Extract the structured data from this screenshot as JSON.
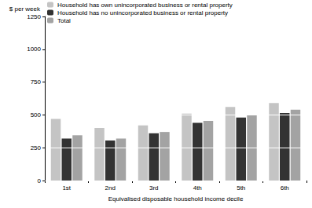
{
  "chart_data": {
    "type": "bar",
    "ylabel": "$ per week",
    "xlabel": "Equivalised disposable household income decile",
    "categories": [
      "1st",
      "2nd",
      "3rd",
      "4th",
      "5th",
      "6th"
    ],
    "series": [
      {
        "name": "Household has own unincorporated business or rental property",
        "color": "#c4c4c4",
        "values": [
          470,
          400,
          420,
          510,
          560,
          590
        ]
      },
      {
        "name": "Household has no unincorporated business or rental property",
        "color": "#333333",
        "values": [
          320,
          305,
          360,
          440,
          480,
          515
        ]
      },
      {
        "name": "Total",
        "color": "#a3a3a3",
        "values": [
          345,
          320,
          370,
          455,
          500,
          540
        ]
      }
    ],
    "ylim": [
      0,
      1250
    ],
    "yticks": [
      0,
      250,
      500,
      750,
      1000,
      1250
    ],
    "grid": true,
    "legend": "top-left"
  }
}
